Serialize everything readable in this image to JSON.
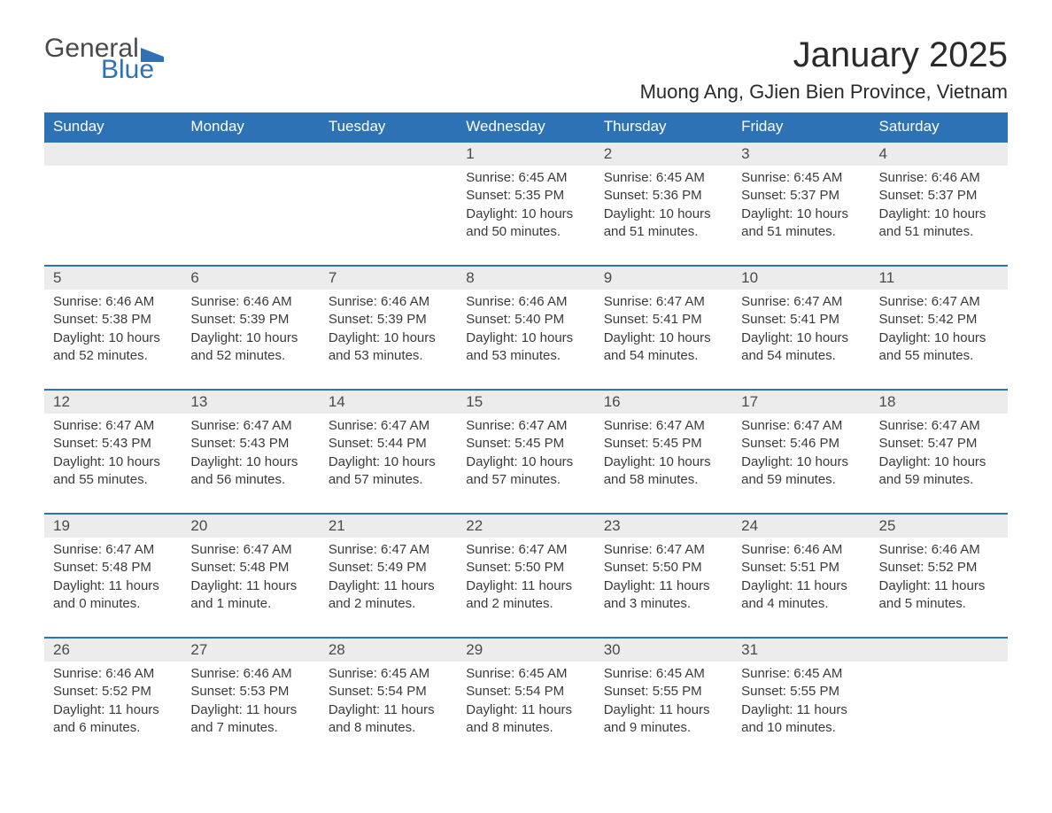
{
  "brand": {
    "word1": "General",
    "word2": "Blue",
    "text_color": "#4a4a4a",
    "accent_color": "#2d72b5"
  },
  "title": "January 2025",
  "location": "Muong Ang, GJien Bien Province, Vietnam",
  "colors": {
    "header_bg": "#2d72b5",
    "header_text": "#ffffff",
    "daynum_bg": "#ececec",
    "row_divider": "#2d72b5",
    "body_text": "#3a3a3a",
    "page_bg": "#ffffff"
  },
  "typography": {
    "title_fontsize": 40,
    "location_fontsize": 22,
    "weekday_fontsize": 17,
    "daynum_fontsize": 17,
    "body_fontsize": 15
  },
  "weekdays": [
    "Sunday",
    "Monday",
    "Tuesday",
    "Wednesday",
    "Thursday",
    "Friday",
    "Saturday"
  ],
  "weeks": [
    [
      null,
      null,
      null,
      {
        "day": "1",
        "sunrise": "Sunrise: 6:45 AM",
        "sunset": "Sunset: 5:35 PM",
        "daylight": "Daylight: 10 hours and 50 minutes."
      },
      {
        "day": "2",
        "sunrise": "Sunrise: 6:45 AM",
        "sunset": "Sunset: 5:36 PM",
        "daylight": "Daylight: 10 hours and 51 minutes."
      },
      {
        "day": "3",
        "sunrise": "Sunrise: 6:45 AM",
        "sunset": "Sunset: 5:37 PM",
        "daylight": "Daylight: 10 hours and 51 minutes."
      },
      {
        "day": "4",
        "sunrise": "Sunrise: 6:46 AM",
        "sunset": "Sunset: 5:37 PM",
        "daylight": "Daylight: 10 hours and 51 minutes."
      }
    ],
    [
      {
        "day": "5",
        "sunrise": "Sunrise: 6:46 AM",
        "sunset": "Sunset: 5:38 PM",
        "daylight": "Daylight: 10 hours and 52 minutes."
      },
      {
        "day": "6",
        "sunrise": "Sunrise: 6:46 AM",
        "sunset": "Sunset: 5:39 PM",
        "daylight": "Daylight: 10 hours and 52 minutes."
      },
      {
        "day": "7",
        "sunrise": "Sunrise: 6:46 AM",
        "sunset": "Sunset: 5:39 PM",
        "daylight": "Daylight: 10 hours and 53 minutes."
      },
      {
        "day": "8",
        "sunrise": "Sunrise: 6:46 AM",
        "sunset": "Sunset: 5:40 PM",
        "daylight": "Daylight: 10 hours and 53 minutes."
      },
      {
        "day": "9",
        "sunrise": "Sunrise: 6:47 AM",
        "sunset": "Sunset: 5:41 PM",
        "daylight": "Daylight: 10 hours and 54 minutes."
      },
      {
        "day": "10",
        "sunrise": "Sunrise: 6:47 AM",
        "sunset": "Sunset: 5:41 PM",
        "daylight": "Daylight: 10 hours and 54 minutes."
      },
      {
        "day": "11",
        "sunrise": "Sunrise: 6:47 AM",
        "sunset": "Sunset: 5:42 PM",
        "daylight": "Daylight: 10 hours and 55 minutes."
      }
    ],
    [
      {
        "day": "12",
        "sunrise": "Sunrise: 6:47 AM",
        "sunset": "Sunset: 5:43 PM",
        "daylight": "Daylight: 10 hours and 55 minutes."
      },
      {
        "day": "13",
        "sunrise": "Sunrise: 6:47 AM",
        "sunset": "Sunset: 5:43 PM",
        "daylight": "Daylight: 10 hours and 56 minutes."
      },
      {
        "day": "14",
        "sunrise": "Sunrise: 6:47 AM",
        "sunset": "Sunset: 5:44 PM",
        "daylight": "Daylight: 10 hours and 57 minutes."
      },
      {
        "day": "15",
        "sunrise": "Sunrise: 6:47 AM",
        "sunset": "Sunset: 5:45 PM",
        "daylight": "Daylight: 10 hours and 57 minutes."
      },
      {
        "day": "16",
        "sunrise": "Sunrise: 6:47 AM",
        "sunset": "Sunset: 5:45 PM",
        "daylight": "Daylight: 10 hours and 58 minutes."
      },
      {
        "day": "17",
        "sunrise": "Sunrise: 6:47 AM",
        "sunset": "Sunset: 5:46 PM",
        "daylight": "Daylight: 10 hours and 59 minutes."
      },
      {
        "day": "18",
        "sunrise": "Sunrise: 6:47 AM",
        "sunset": "Sunset: 5:47 PM",
        "daylight": "Daylight: 10 hours and 59 minutes."
      }
    ],
    [
      {
        "day": "19",
        "sunrise": "Sunrise: 6:47 AM",
        "sunset": "Sunset: 5:48 PM",
        "daylight": "Daylight: 11 hours and 0 minutes."
      },
      {
        "day": "20",
        "sunrise": "Sunrise: 6:47 AM",
        "sunset": "Sunset: 5:48 PM",
        "daylight": "Daylight: 11 hours and 1 minute."
      },
      {
        "day": "21",
        "sunrise": "Sunrise: 6:47 AM",
        "sunset": "Sunset: 5:49 PM",
        "daylight": "Daylight: 11 hours and 2 minutes."
      },
      {
        "day": "22",
        "sunrise": "Sunrise: 6:47 AM",
        "sunset": "Sunset: 5:50 PM",
        "daylight": "Daylight: 11 hours and 2 minutes."
      },
      {
        "day": "23",
        "sunrise": "Sunrise: 6:47 AM",
        "sunset": "Sunset: 5:50 PM",
        "daylight": "Daylight: 11 hours and 3 minutes."
      },
      {
        "day": "24",
        "sunrise": "Sunrise: 6:46 AM",
        "sunset": "Sunset: 5:51 PM",
        "daylight": "Daylight: 11 hours and 4 minutes."
      },
      {
        "day": "25",
        "sunrise": "Sunrise: 6:46 AM",
        "sunset": "Sunset: 5:52 PM",
        "daylight": "Daylight: 11 hours and 5 minutes."
      }
    ],
    [
      {
        "day": "26",
        "sunrise": "Sunrise: 6:46 AM",
        "sunset": "Sunset: 5:52 PM",
        "daylight": "Daylight: 11 hours and 6 minutes."
      },
      {
        "day": "27",
        "sunrise": "Sunrise: 6:46 AM",
        "sunset": "Sunset: 5:53 PM",
        "daylight": "Daylight: 11 hours and 7 minutes."
      },
      {
        "day": "28",
        "sunrise": "Sunrise: 6:45 AM",
        "sunset": "Sunset: 5:54 PM",
        "daylight": "Daylight: 11 hours and 8 minutes."
      },
      {
        "day": "29",
        "sunrise": "Sunrise: 6:45 AM",
        "sunset": "Sunset: 5:54 PM",
        "daylight": "Daylight: 11 hours and 8 minutes."
      },
      {
        "day": "30",
        "sunrise": "Sunrise: 6:45 AM",
        "sunset": "Sunset: 5:55 PM",
        "daylight": "Daylight: 11 hours and 9 minutes."
      },
      {
        "day": "31",
        "sunrise": "Sunrise: 6:45 AM",
        "sunset": "Sunset: 5:55 PM",
        "daylight": "Daylight: 11 hours and 10 minutes."
      },
      null
    ]
  ]
}
